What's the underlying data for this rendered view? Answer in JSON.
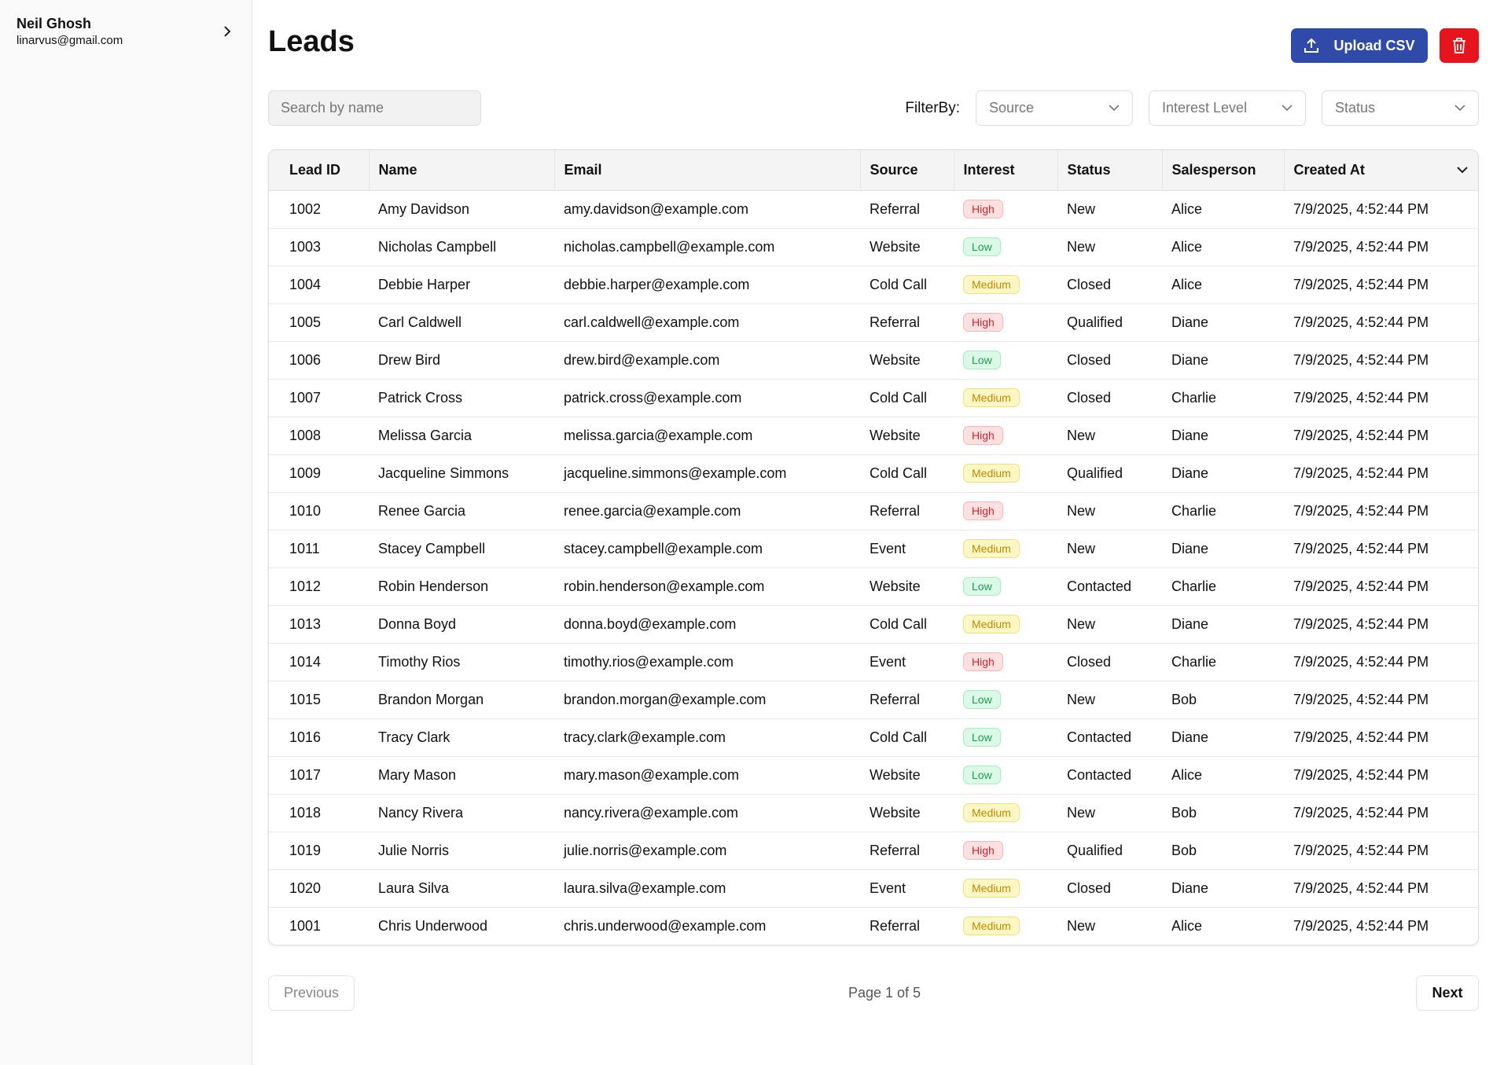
{
  "sidebar": {
    "user_name": "Neil Ghosh",
    "user_email": "linarvus@gmail.com"
  },
  "header": {
    "title": "Leads",
    "upload_button": "Upload CSV"
  },
  "filters": {
    "search_placeholder": "Search by name",
    "label": "FilterBy:",
    "selects": [
      "Source",
      "Interest Level",
      "Status"
    ]
  },
  "table": {
    "columns": [
      "Lead ID",
      "Name",
      "Email",
      "Source",
      "Interest",
      "Status",
      "Salesperson",
      "Created At"
    ],
    "rows": [
      [
        "1002",
        "Amy Davidson",
        "amy.davidson@example.com",
        "Referral",
        "High",
        "New",
        "Alice",
        "7/9/2025, 4:52:44 PM"
      ],
      [
        "1003",
        "Nicholas Campbell",
        "nicholas.campbell@example.com",
        "Website",
        "Low",
        "New",
        "Alice",
        "7/9/2025, 4:52:44 PM"
      ],
      [
        "1004",
        "Debbie Harper",
        "debbie.harper@example.com",
        "Cold Call",
        "Medium",
        "Closed",
        "Alice",
        "7/9/2025, 4:52:44 PM"
      ],
      [
        "1005",
        "Carl Caldwell",
        "carl.caldwell@example.com",
        "Referral",
        "High",
        "Qualified",
        "Diane",
        "7/9/2025, 4:52:44 PM"
      ],
      [
        "1006",
        "Drew Bird",
        "drew.bird@example.com",
        "Website",
        "Low",
        "Closed",
        "Diane",
        "7/9/2025, 4:52:44 PM"
      ],
      [
        "1007",
        "Patrick Cross",
        "patrick.cross@example.com",
        "Cold Call",
        "Medium",
        "Closed",
        "Charlie",
        "7/9/2025, 4:52:44 PM"
      ],
      [
        "1008",
        "Melissa Garcia",
        "melissa.garcia@example.com",
        "Website",
        "High",
        "New",
        "Diane",
        "7/9/2025, 4:52:44 PM"
      ],
      [
        "1009",
        "Jacqueline Simmons",
        "jacqueline.simmons@example.com",
        "Cold Call",
        "Medium",
        "Qualified",
        "Diane",
        "7/9/2025, 4:52:44 PM"
      ],
      [
        "1010",
        "Renee Garcia",
        "renee.garcia@example.com",
        "Referral",
        "High",
        "New",
        "Charlie",
        "7/9/2025, 4:52:44 PM"
      ],
      [
        "1011",
        "Stacey Campbell",
        "stacey.campbell@example.com",
        "Event",
        "Medium",
        "New",
        "Diane",
        "7/9/2025, 4:52:44 PM"
      ],
      [
        "1012",
        "Robin Henderson",
        "robin.henderson@example.com",
        "Website",
        "Low",
        "Contacted",
        "Charlie",
        "7/9/2025, 4:52:44 PM"
      ],
      [
        "1013",
        "Donna Boyd",
        "donna.boyd@example.com",
        "Cold Call",
        "Medium",
        "New",
        "Diane",
        "7/9/2025, 4:52:44 PM"
      ],
      [
        "1014",
        "Timothy Rios",
        "timothy.rios@example.com",
        "Event",
        "High",
        "Closed",
        "Charlie",
        "7/9/2025, 4:52:44 PM"
      ],
      [
        "1015",
        "Brandon Morgan",
        "brandon.morgan@example.com",
        "Referral",
        "Low",
        "New",
        "Bob",
        "7/9/2025, 4:52:44 PM"
      ],
      [
        "1016",
        "Tracy Clark",
        "tracy.clark@example.com",
        "Cold Call",
        "Low",
        "Contacted",
        "Diane",
        "7/9/2025, 4:52:44 PM"
      ],
      [
        "1017",
        "Mary Mason",
        "mary.mason@example.com",
        "Website",
        "Low",
        "Contacted",
        "Alice",
        "7/9/2025, 4:52:44 PM"
      ],
      [
        "1018",
        "Nancy Rivera",
        "nancy.rivera@example.com",
        "Website",
        "Medium",
        "New",
        "Bob",
        "7/9/2025, 4:52:44 PM"
      ],
      [
        "1019",
        "Julie Norris",
        "julie.norris@example.com",
        "Referral",
        "High",
        "Qualified",
        "Bob",
        "7/9/2025, 4:52:44 PM"
      ],
      [
        "1020",
        "Laura Silva",
        "laura.silva@example.com",
        "Event",
        "Medium",
        "Closed",
        "Diane",
        "7/9/2025, 4:52:44 PM"
      ],
      [
        "1001",
        "Chris Underwood",
        "chris.underwood@example.com",
        "Referral",
        "Medium",
        "New",
        "Alice",
        "7/9/2025, 4:52:44 PM"
      ]
    ]
  },
  "pagination": {
    "previous": "Previous",
    "page_info": "Page 1 of 5",
    "next": "Next"
  }
}
